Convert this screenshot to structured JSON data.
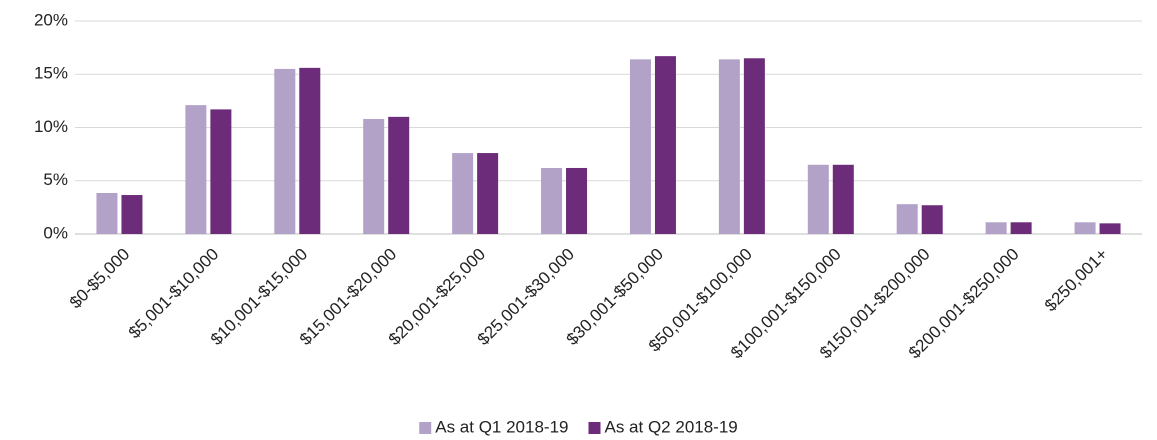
{
  "chart_data": {
    "type": "bar",
    "categories": [
      "$0-$5,000",
      "$5,001-$10,000",
      "$10,001-$15,000",
      "$15,001-$20,000",
      "$20,001-$25,000",
      "$25,001-$30,000",
      "$30,001-$50,000",
      "$50,001-$100,000",
      "$100,001-$150,000",
      "$150,001-$200,000",
      "$200,001-$250,000",
      "$250,001+"
    ],
    "series": [
      {
        "name": "As at Q1 2018-19",
        "color": "#b3a2c8",
        "values": [
          3.85,
          12.1,
          15.5,
          10.8,
          7.6,
          6.2,
          16.4,
          16.4,
          6.5,
          2.8,
          1.1,
          1.1
        ]
      },
      {
        "name": "As at Q2 2018-19",
        "color": "#6d2c7a",
        "values": [
          3.66,
          11.7,
          15.6,
          11.0,
          7.6,
          6.2,
          16.7,
          16.5,
          6.5,
          2.7,
          1.1,
          1.0
        ]
      }
    ],
    "ylim": [
      0,
      20
    ],
    "yticks": [
      {
        "value": 0,
        "label": "0%"
      },
      {
        "value": 5,
        "label": "5%"
      },
      {
        "value": 10,
        "label": "10%"
      },
      {
        "value": 15,
        "label": "15%"
      },
      {
        "value": 20,
        "label": "20%"
      }
    ],
    "grid": true,
    "legend": "bottom"
  }
}
